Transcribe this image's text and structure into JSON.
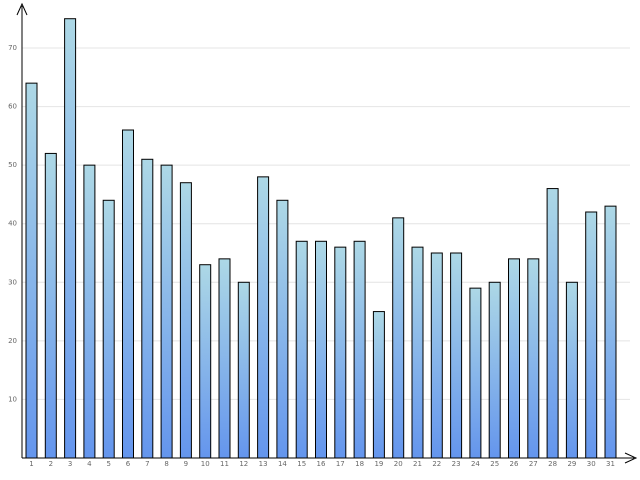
{
  "chart_data": {
    "type": "bar",
    "categories": [
      "1",
      "2",
      "3",
      "4",
      "5",
      "6",
      "7",
      "8",
      "9",
      "10",
      "11",
      "12",
      "13",
      "14",
      "15",
      "16",
      "17",
      "18",
      "19",
      "20",
      "21",
      "22",
      "23",
      "24",
      "25",
      "26",
      "27",
      "28",
      "29",
      "30",
      "31"
    ],
    "values": [
      64,
      52,
      75,
      50,
      44,
      56,
      51,
      50,
      47,
      33,
      34,
      30,
      48,
      44,
      37,
      37,
      36,
      37,
      25,
      41,
      36,
      35,
      35,
      29,
      30,
      34,
      34,
      46,
      30,
      42,
      43
    ],
    "color_top": "#add8e6",
    "color_bottom": "#6495ed",
    "ylim": [
      0,
      77
    ],
    "yticks": [
      10,
      20,
      30,
      40,
      50,
      60,
      70
    ],
    "grid": true
  }
}
